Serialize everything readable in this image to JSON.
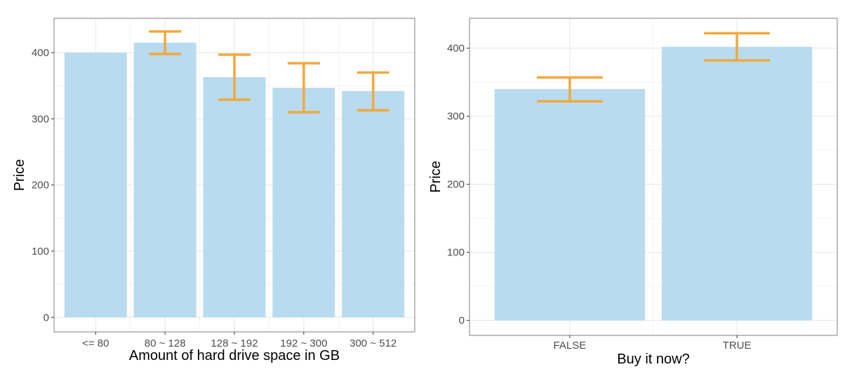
{
  "chart_data": [
    {
      "type": "bar",
      "categories": [
        "<= 80",
        "80 ~ 128",
        "128 ~ 192",
        "192 ~ 300",
        "300 ~ 512"
      ],
      "values": [
        400,
        415,
        363,
        347,
        342
      ],
      "error_bars": [
        null,
        [
          398,
          432
        ],
        [
          329,
          397
        ],
        [
          310,
          384
        ],
        [
          313,
          370
        ]
      ],
      "xlabel": "Amount of hard drive space in GB",
      "ylabel": "Price",
      "yticks": [
        0,
        100,
        200,
        300,
        400
      ],
      "ylim": [
        -22,
        452
      ],
      "grid": true,
      "colors": {
        "bar": "#b8dbef",
        "error_bar": "#f2a93b"
      }
    },
    {
      "type": "bar",
      "categories": [
        "FALSE",
        "TRUE"
      ],
      "values": [
        340,
        402
      ],
      "error_bars": [
        [
          322,
          357
        ],
        [
          382,
          422
        ]
      ],
      "xlabel": "Buy it now?",
      "ylabel": "Price",
      "yticks": [
        0,
        100,
        200,
        300,
        400
      ],
      "ylim": [
        -22,
        444
      ],
      "grid": true,
      "colors": {
        "bar": "#b8dbef",
        "error_bar": "#f2a93b"
      }
    }
  ]
}
